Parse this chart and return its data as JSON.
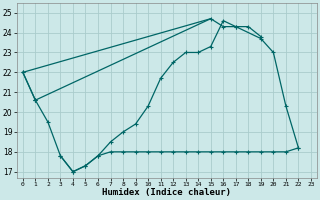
{
  "xlabel": "Humidex (Indice chaleur)",
  "background_color": "#cce8e8",
  "grid_color": "#aacccc",
  "line_color": "#006666",
  "xlim": [
    -0.5,
    23.5
  ],
  "ylim": [
    16.7,
    25.5
  ],
  "xticks": [
    0,
    1,
    2,
    3,
    4,
    5,
    6,
    7,
    8,
    9,
    10,
    11,
    12,
    13,
    14,
    15,
    16,
    17,
    18,
    19,
    20,
    21,
    22,
    23
  ],
  "yticks": [
    17,
    18,
    19,
    20,
    21,
    22,
    23,
    24,
    25
  ],
  "line1_x": [
    0,
    1,
    2,
    3,
    4,
    5,
    6,
    7,
    8,
    9,
    10,
    11,
    12,
    13,
    14,
    15,
    16,
    17,
    18,
    19
  ],
  "line1_y": [
    22,
    20.6,
    19.5,
    17.8,
    17.0,
    17.3,
    17.8,
    18.5,
    19.0,
    19.4,
    20.3,
    21.7,
    22.5,
    23.0,
    23.0,
    23.3,
    24.6,
    24.3,
    24.3,
    23.8
  ],
  "line2_x": [
    0,
    1,
    15,
    16,
    17,
    19,
    20,
    21,
    22
  ],
  "line2_y": [
    22,
    20.6,
    24.7,
    24.3,
    24.3,
    23.7,
    23.0,
    20.3,
    18.2
  ],
  "line3_x": [
    3,
    4,
    5,
    6,
    7,
    8,
    9,
    10,
    11,
    12,
    13,
    14,
    15,
    16,
    17,
    18,
    19,
    20,
    21,
    22
  ],
  "line3_y": [
    17.8,
    17.0,
    17.3,
    17.8,
    18.0,
    18.0,
    18.0,
    18.0,
    18.0,
    18.0,
    18.0,
    18.0,
    18.0,
    18.0,
    18.0,
    18.0,
    18.0,
    18.0,
    18.0,
    18.2
  ]
}
